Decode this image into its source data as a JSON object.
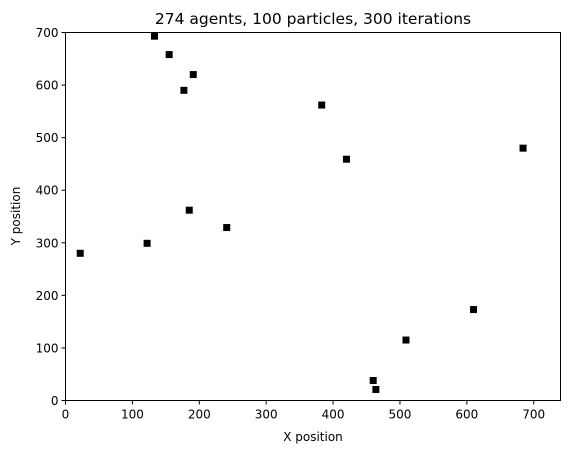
{
  "chart_data": {
    "type": "scatter",
    "title": "274 agents, 100 particles, 300 iterations",
    "xlabel": "X position",
    "ylabel": "Y position",
    "xlim": [
      0,
      740
    ],
    "ylim": [
      0,
      700
    ],
    "xticks": [
      0,
      100,
      200,
      300,
      400,
      500,
      600,
      700
    ],
    "yticks": [
      0,
      100,
      200,
      300,
      400,
      500,
      600,
      700
    ],
    "grid": false,
    "marker": "square",
    "marker_color": "#000000",
    "points": [
      {
        "x": 22,
        "y": 280
      },
      {
        "x": 122,
        "y": 299
      },
      {
        "x": 133,
        "y": 693
      },
      {
        "x": 155,
        "y": 658
      },
      {
        "x": 177,
        "y": 590
      },
      {
        "x": 185,
        "y": 362
      },
      {
        "x": 191,
        "y": 620
      },
      {
        "x": 241,
        "y": 329
      },
      {
        "x": 383,
        "y": 562
      },
      {
        "x": 420,
        "y": 459
      },
      {
        "x": 460,
        "y": 38
      },
      {
        "x": 464,
        "y": 21
      },
      {
        "x": 509,
        "y": 115
      },
      {
        "x": 610,
        "y": 173
      },
      {
        "x": 684,
        "y": 480
      }
    ]
  }
}
